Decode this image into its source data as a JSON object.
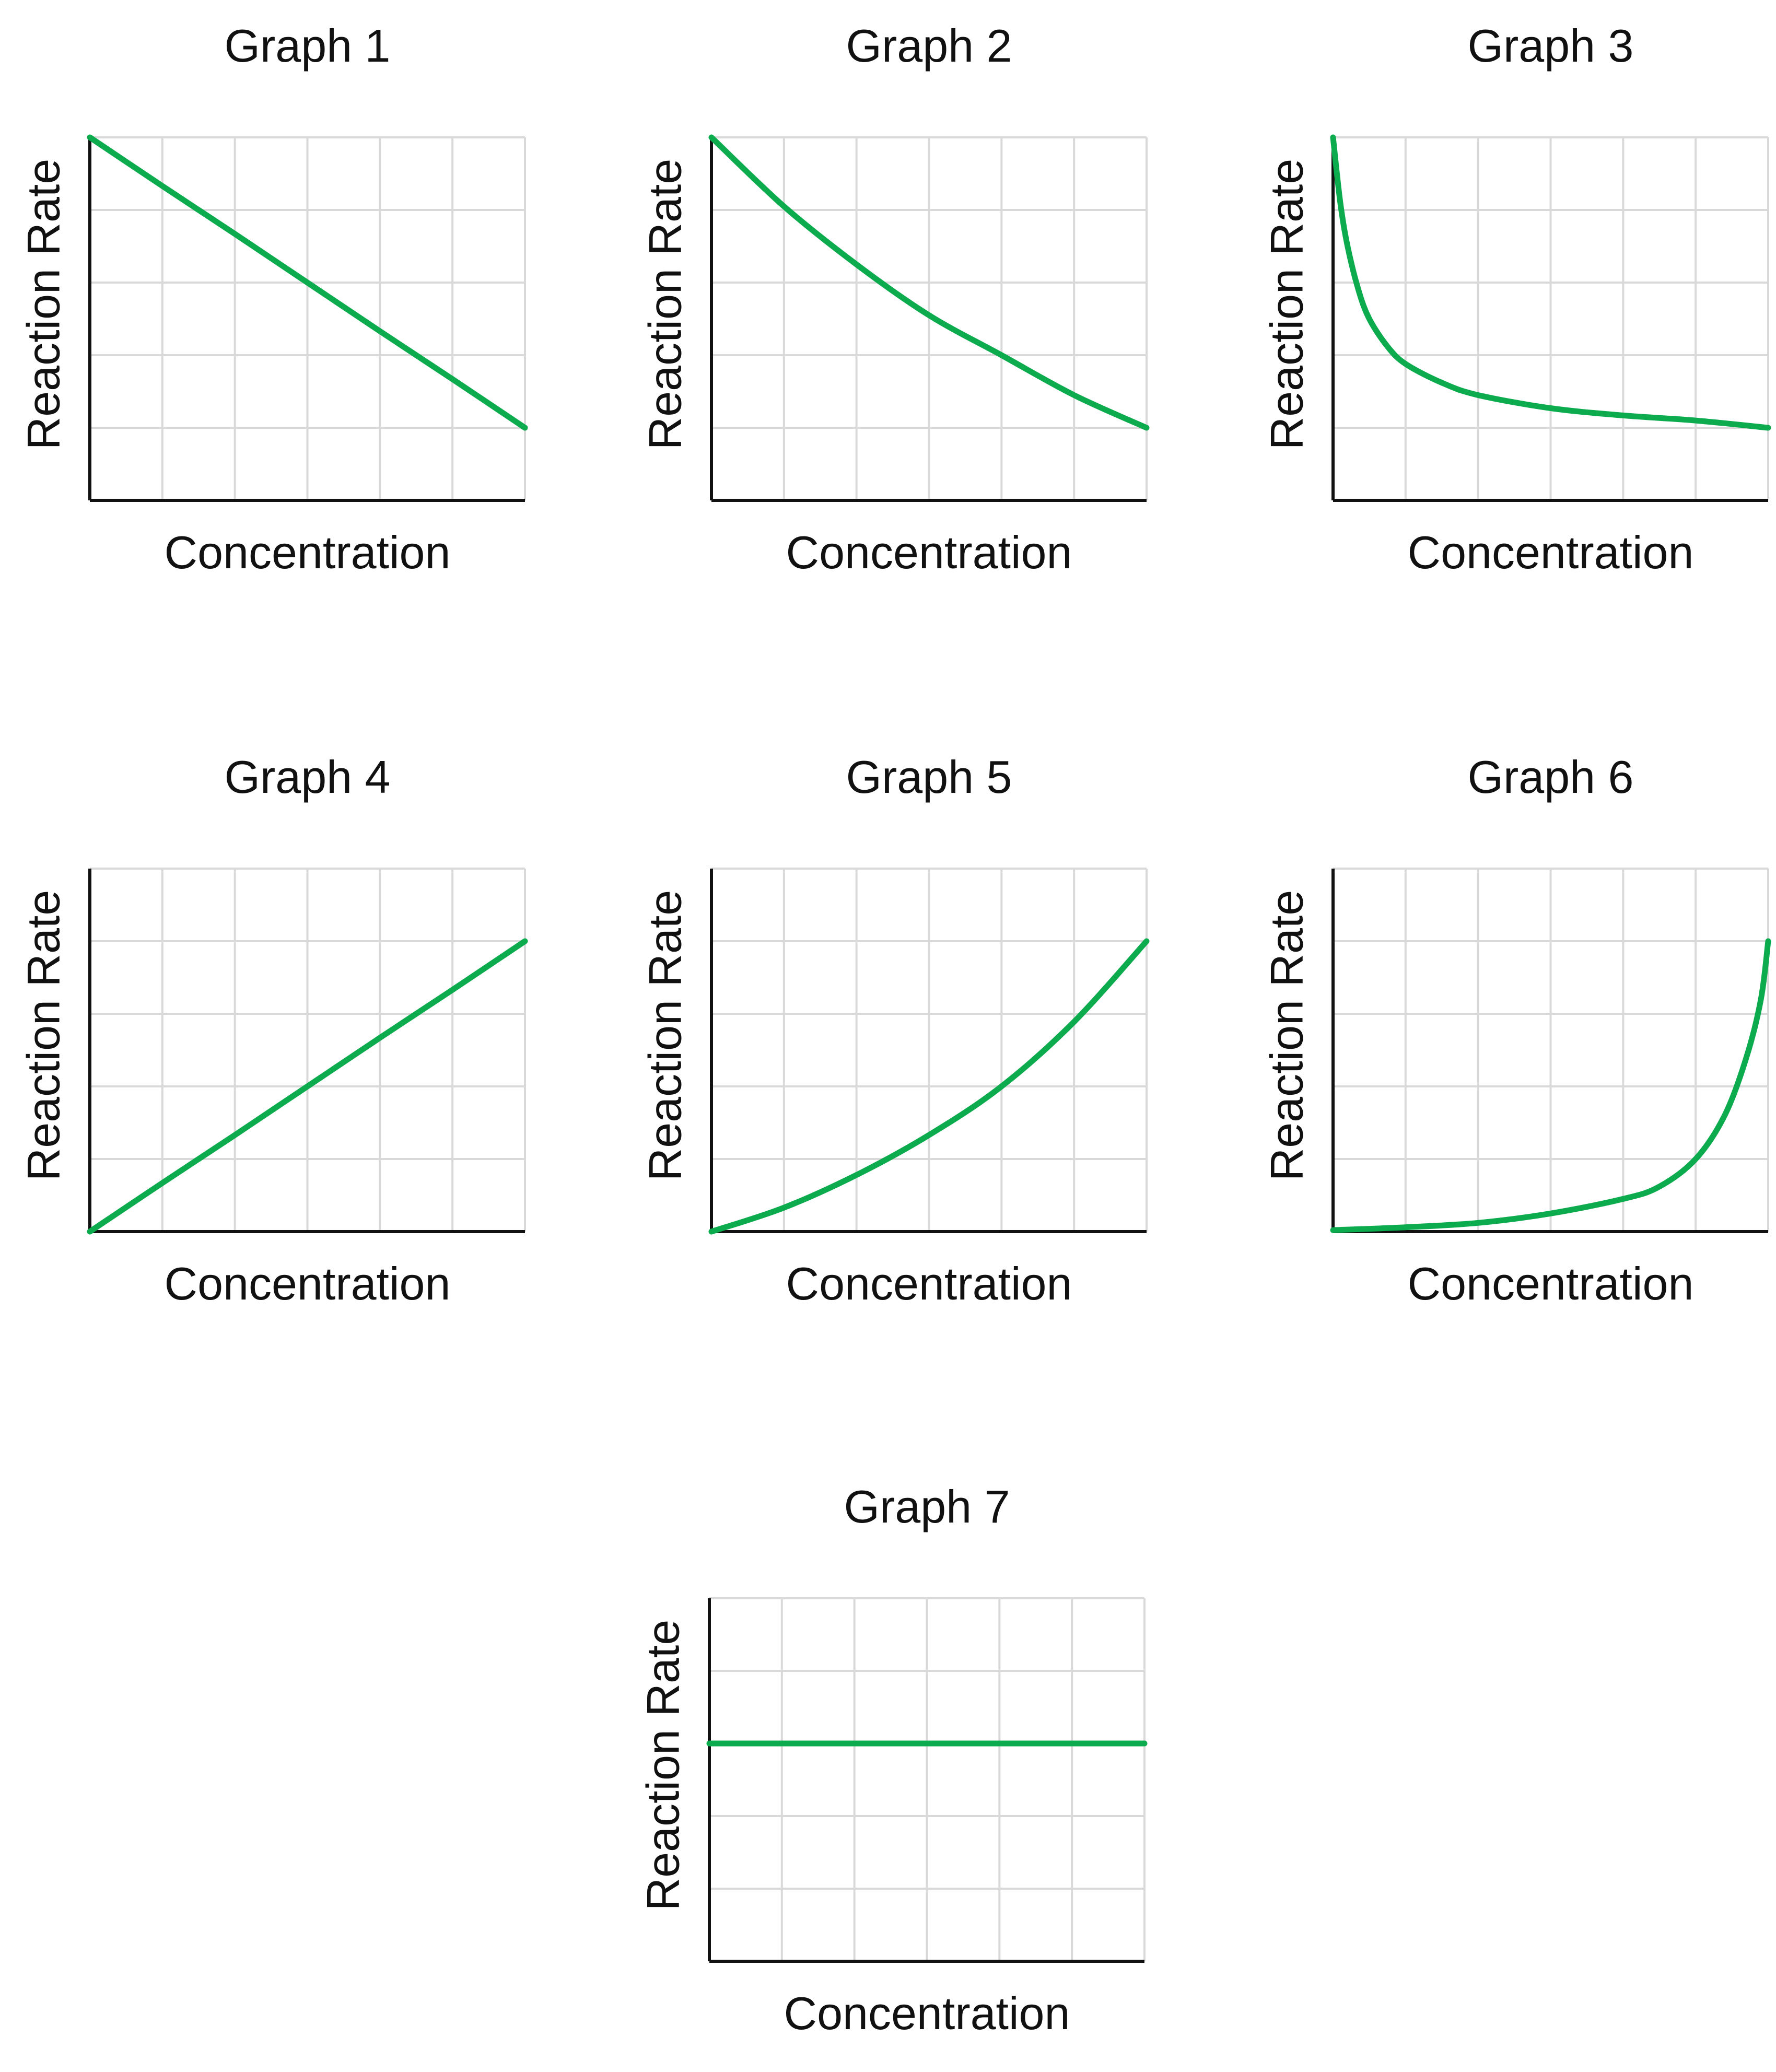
{
  "colors": {
    "series": "#0bab4e",
    "grid": "#d9d9d9",
    "axis": "#111111",
    "text": "#111111"
  },
  "chart_data": [
    {
      "type": "line",
      "title": "Graph 1",
      "xlabel": "Concentration",
      "ylabel": "Reaction Rate",
      "xlim": [
        0,
        6
      ],
      "ylim": [
        0,
        5
      ],
      "grid": true,
      "series": [
        {
          "name": "reaction-rate",
          "x": [
            0,
            1,
            2,
            3,
            4,
            5,
            6
          ],
          "y": [
            5,
            4.33,
            3.67,
            3,
            2.33,
            1.67,
            1
          ]
        }
      ]
    },
    {
      "type": "line",
      "title": "Graph 2",
      "xlabel": "Concentration",
      "ylabel": "Reaction Rate",
      "xlim": [
        0,
        6
      ],
      "ylim": [
        0,
        5
      ],
      "grid": true,
      "series": [
        {
          "name": "reaction-rate",
          "x": [
            0,
            1,
            2,
            3,
            4,
            5,
            6
          ],
          "y": [
            5,
            4.05,
            3.25,
            2.55,
            2.0,
            1.45,
            1
          ]
        }
      ]
    },
    {
      "type": "line",
      "title": "Graph 3",
      "xlabel": "Concentration",
      "ylabel": "Reaction Rate",
      "xlim": [
        0,
        6
      ],
      "ylim": [
        0,
        5
      ],
      "grid": true,
      "series": [
        {
          "name": "reaction-rate",
          "x": [
            0,
            0.1,
            0.2,
            0.35,
            0.5,
            0.75,
            1,
            1.5,
            2,
            3,
            4,
            5,
            6
          ],
          "y": [
            5,
            4.1,
            3.5,
            2.9,
            2.5,
            2.12,
            1.88,
            1.62,
            1.45,
            1.27,
            1.17,
            1.1,
            1.0
          ]
        }
      ]
    },
    {
      "type": "line",
      "title": "Graph 4",
      "xlabel": "Concentration",
      "ylabel": "Reaction Rate",
      "xlim": [
        0,
        6
      ],
      "ylim": [
        0,
        5
      ],
      "grid": true,
      "series": [
        {
          "name": "reaction-rate",
          "x": [
            0,
            1,
            2,
            3,
            4,
            5,
            6
          ],
          "y": [
            0,
            0.67,
            1.33,
            2,
            2.67,
            3.33,
            4
          ]
        }
      ]
    },
    {
      "type": "line",
      "title": "Graph 5",
      "xlabel": "Concentration",
      "ylabel": "Reaction Rate",
      "xlim": [
        0,
        6
      ],
      "ylim": [
        0,
        5
      ],
      "grid": true,
      "series": [
        {
          "name": "reaction-rate",
          "x": [
            0,
            1,
            2,
            3,
            4,
            5,
            6
          ],
          "y": [
            0,
            0.33,
            0.78,
            1.33,
            2.0,
            2.89,
            4
          ]
        }
      ]
    },
    {
      "type": "line",
      "title": "Graph 6",
      "xlabel": "Concentration",
      "ylabel": "Reaction Rate",
      "xlim": [
        0,
        6
      ],
      "ylim": [
        0,
        5
      ],
      "grid": true,
      "series": [
        {
          "name": "reaction-rate",
          "x": [
            0,
            1,
            2,
            3,
            4,
            4.5,
            5,
            5.4,
            5.7,
            5.9,
            6
          ],
          "y": [
            0.02,
            0.06,
            0.12,
            0.25,
            0.45,
            0.62,
            1.0,
            1.6,
            2.4,
            3.2,
            4
          ]
        }
      ]
    },
    {
      "type": "line",
      "title": "Graph 7",
      "xlabel": "Concentration",
      "ylabel": "Reaction Rate",
      "xlim": [
        0,
        6
      ],
      "ylim": [
        0,
        5
      ],
      "grid": true,
      "series": [
        {
          "name": "reaction-rate",
          "x": [
            0,
            1,
            2,
            3,
            4,
            5,
            6
          ],
          "y": [
            3,
            3,
            3,
            3,
            3,
            3,
            3
          ]
        }
      ]
    }
  ]
}
